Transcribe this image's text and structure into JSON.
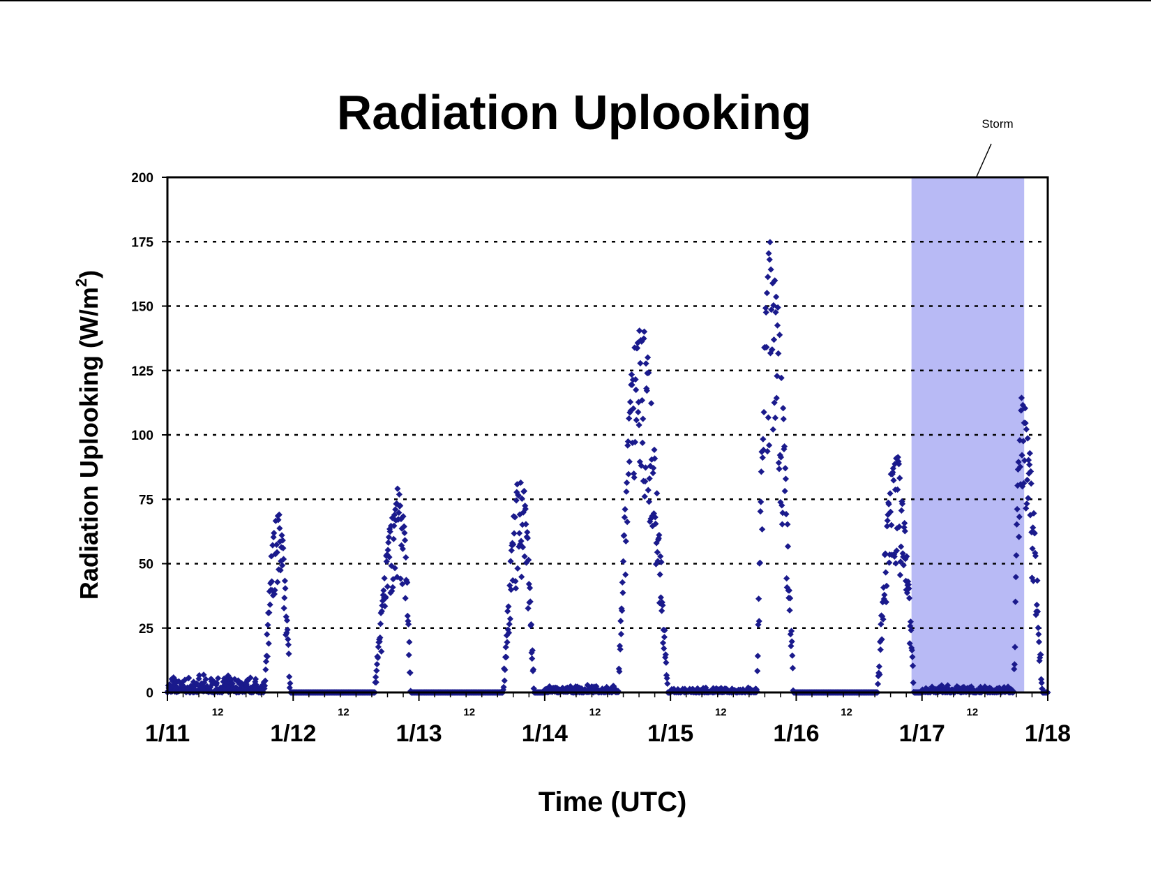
{
  "chart_data": {
    "type": "scatter",
    "title": "Radiation Uplooking",
    "xlabel": "Time (UTC)",
    "ylabel": "Radiation Uplooking (W/m",
    "ylabel_superscript": "2",
    "ylabel_close": ")",
    "ylim": [
      0,
      200
    ],
    "yticks": [
      "0",
      "25",
      "50",
      "75",
      "100",
      "125",
      "150",
      "175",
      "200"
    ],
    "xlim_days": [
      11,
      18
    ],
    "x_major_ticks": [
      "1/11",
      "1/12",
      "1/13",
      "1/14",
      "1/15",
      "1/16",
      "1/17",
      "1/18"
    ],
    "x_minor_tick_label": "12",
    "x_minor_ticks": [
      "12",
      "12",
      "12",
      "12",
      "12",
      "12",
      "12"
    ],
    "grid": "horizontal dotted",
    "marker": "diamond",
    "marker_color": "#1a1a8c",
    "storm_band_color": "#b8baf5",
    "annotation": {
      "text": "Storm",
      "x_start": "1/16 22:00",
      "x_end": "1/17 19:30"
    },
    "daily_peaks": [
      {
        "date": "1/11",
        "rise": "1/11 18:30",
        "peak_time": "1/11 21:00",
        "peak": 74,
        "set": "1/11 23:30",
        "morning_max": 7
      },
      {
        "date": "1/12",
        "rise": "1/12 15:30",
        "peak_time": "1/12 20:30",
        "peak": 82,
        "set": "1/12 22:30",
        "morning_max": 0
      },
      {
        "date": "1/13",
        "rise": "1/13 16:00",
        "peak_time": "1/13 19:30",
        "peak": 86,
        "set": "1/13 22:00",
        "morning_max": 0
      },
      {
        "date": "1/14",
        "rise": "1/14 14:00",
        "peak_time": "1/14 18:00",
        "peak": 148,
        "set": "1/14 23:30",
        "morning_max": 3
      },
      {
        "date": "1/15",
        "rise": "1/15 16:30",
        "peak_time": "1/15 19:00",
        "peak": 175,
        "set": "1/15 23:30",
        "morning_max": 2
      },
      {
        "date": "1/16",
        "rise": "1/16 15:30",
        "peak_time": "1/16 19:00",
        "peak": 94,
        "set": "1/16 22:30",
        "morning_max": 0
      },
      {
        "date": "1/17",
        "rise": "1/17 17:30",
        "peak_time": "1/17 19:00",
        "peak": 116,
        "set": "1/17 23:00",
        "morning_max": 3
      }
    ]
  }
}
